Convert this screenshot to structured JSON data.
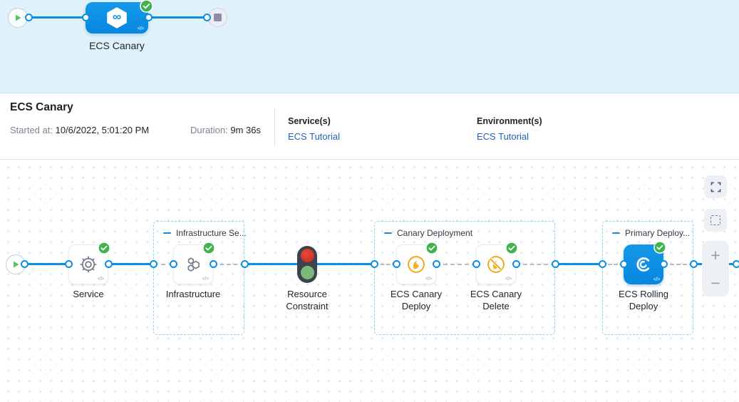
{
  "colors": {
    "accent_blue": "#0b8fe4",
    "success_green": "#42b24c",
    "link_blue": "#2164b6",
    "canary_yellow": "#f2ab1d",
    "top_band_bg": "#dff2fb",
    "dashed_group_border": "#8ed2f4",
    "traffic_red": "#d3341f",
    "traffic_green": "#7cb97b"
  },
  "mini_pipeline": {
    "stage_label": "ECS Canary",
    "infinity_symbol": "∞",
    "code_icon": "</>"
  },
  "details": {
    "title": "ECS Canary",
    "started_label": "Started at:",
    "started_value": "10/6/2022, 5:01:20 PM",
    "duration_label": "Duration:",
    "duration_value": "9m 36s",
    "services_label": "Service(s)",
    "services_value": "ECS Tutorial",
    "environments_label": "Environment(s)",
    "environments_value": "ECS Tutorial"
  },
  "graph": {
    "code_icon": "</>",
    "groups": [
      {
        "label": "Infrastructure Se..."
      },
      {
        "label": "Canary Deployment"
      },
      {
        "label": "Primary Deploy..."
      }
    ],
    "nodes": [
      {
        "label": "Service",
        "icon": "gear-icon",
        "status": "success"
      },
      {
        "label": "Infrastructure",
        "icon": "hexagons-icon",
        "status": "success"
      },
      {
        "label": "Resource Constraint",
        "icon": "traffic-light-icon"
      },
      {
        "label": "ECS Canary Deploy",
        "icon": "canary-bird-icon",
        "status": "success"
      },
      {
        "label": "ECS Canary Delete",
        "icon": "canary-delete-icon",
        "status": "success"
      },
      {
        "label": "ECS Rolling Deploy",
        "icon": "ecs-rolling-icon",
        "status": "success"
      }
    ]
  },
  "controls": {
    "zoom_in": "+",
    "zoom_out": "−"
  }
}
